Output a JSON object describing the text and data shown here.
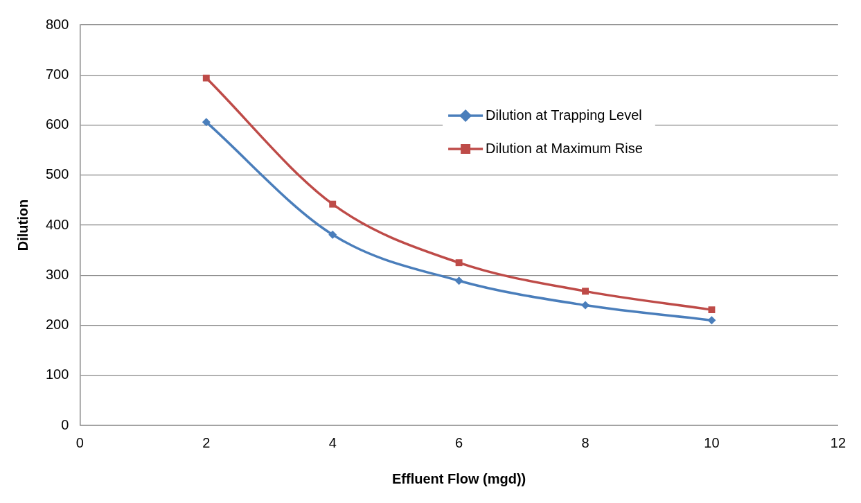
{
  "chart_data": {
    "type": "line",
    "xlabel": "Effluent Flow (mgd))",
    "ylabel": "Dilution",
    "x": [
      2,
      4,
      6,
      8,
      10
    ],
    "series": [
      {
        "name": "Dilution at Trapping Level",
        "color": "#4a7ebb",
        "values": [
          606,
          381,
          289,
          240,
          210
        ],
        "marker": "diamond"
      },
      {
        "name": "Dilution at Maximum Rise",
        "color": "#be4b48",
        "values": [
          694,
          442,
          325,
          268,
          231
        ],
        "marker": "square"
      }
    ],
    "xlim": [
      0,
      12
    ],
    "xticks": [
      0,
      2,
      4,
      6,
      8,
      10,
      12
    ],
    "ylim": [
      0,
      800
    ],
    "yticks": [
      0,
      100,
      200,
      300,
      400,
      500,
      600,
      700,
      800
    ],
    "grid": "y",
    "legend": "top right"
  }
}
